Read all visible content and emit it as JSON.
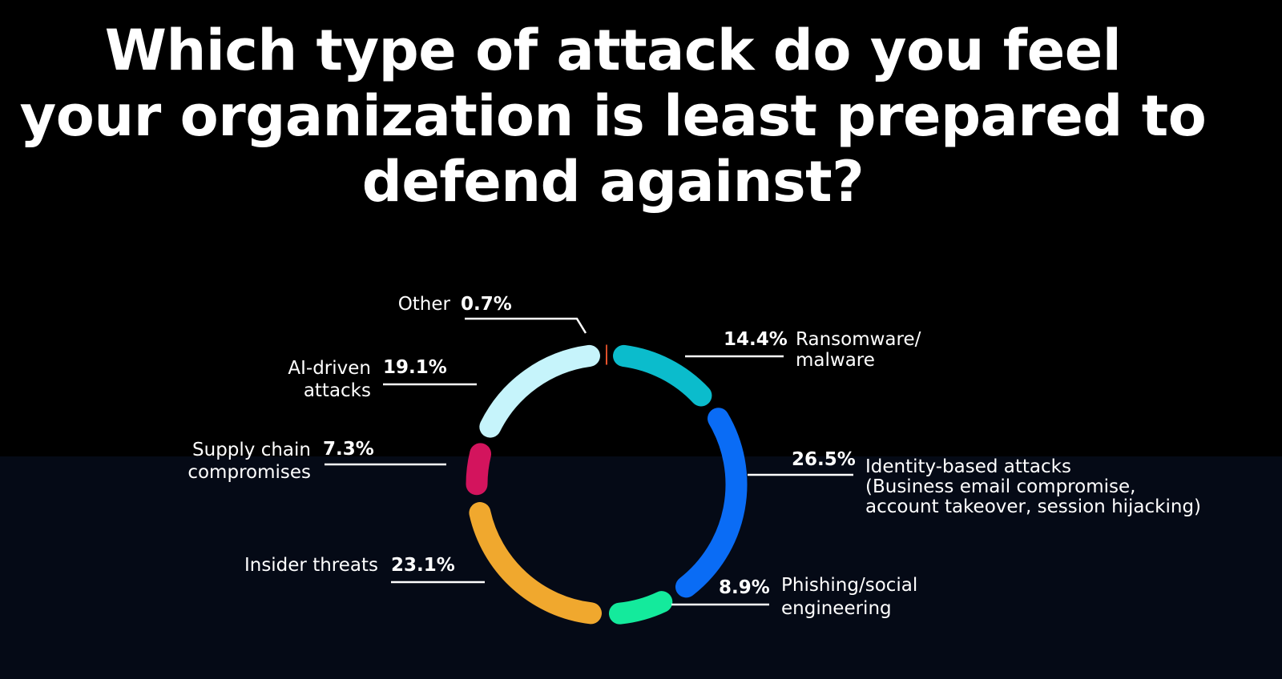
{
  "chart_data": {
    "type": "pie",
    "subtype": "donut",
    "title": [
      "Which type of attack do you feel",
      "your organization is least prepared to",
      "defend against?"
    ],
    "unit": "%",
    "slices": [
      {
        "label": [
          "Other"
        ],
        "value": 0.7,
        "value_label": "0.7%",
        "color": "#e8532c"
      },
      {
        "label": [
          "Ransomware/",
          "malware"
        ],
        "value": 14.4,
        "value_label": "14.4%",
        "color": "#0bbccc"
      },
      {
        "label": [
          "Identity-based attacks",
          "(Business email compromise,",
          "account takeover, session hijacking)"
        ],
        "value": 26.5,
        "value_label": "26.5%",
        "color": "#0a6cf5"
      },
      {
        "label": [
          "Phishing/social",
          "engineering"
        ],
        "value": 8.9,
        "value_label": "8.9%",
        "color": "#14ea9c"
      },
      {
        "label": [
          "Insider threats"
        ],
        "value": 23.1,
        "value_label": "23.1%",
        "color": "#f0a82e"
      },
      {
        "label": [
          "Supply chain",
          "compromises"
        ],
        "value": 7.3,
        "value_label": "7.3%",
        "color": "#d3145d"
      },
      {
        "label": [
          "AI-driven",
          "attacks"
        ],
        "value": 19.1,
        "value_label": "19.1%",
        "color": "#c6f4fb"
      }
    ]
  }
}
